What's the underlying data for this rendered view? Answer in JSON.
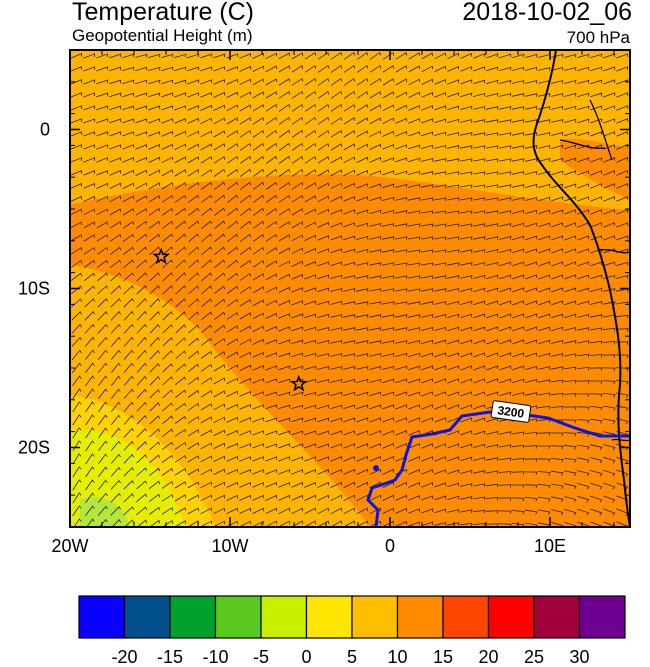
{
  "header": {
    "title": "Temperature (C)",
    "subtitle": "Geopotential Height (m)",
    "valid_time": "2018-10-02_06",
    "level": "700 hPa"
  },
  "map": {
    "lon_range": [
      -20,
      15
    ],
    "lat_range": [
      -25,
      5
    ],
    "x_ticks": [
      {
        "lon": -20,
        "label": "20W"
      },
      {
        "lon": -10,
        "label": "10W"
      },
      {
        "lon": 0,
        "label": "0"
      },
      {
        "lon": 10,
        "label": "10E"
      }
    ],
    "y_ticks": [
      {
        "lat": 0,
        "label": "0"
      },
      {
        "lat": -10,
        "label": "10S"
      },
      {
        "lat": -20,
        "label": "20S"
      }
    ],
    "contour_label": "3200",
    "contour_color": "#0a14e6",
    "stations": [
      {
        "name": "station-star-1",
        "lon": -14.3,
        "lat": -8.0
      },
      {
        "name": "station-star-2",
        "lon": -5.7,
        "lat": -16.0
      }
    ]
  },
  "colorbar": {
    "colors": [
      "#0a00ff",
      "#00508c",
      "#00a02d",
      "#5ac81e",
      "#c8ee00",
      "#ffe600",
      "#ffbe00",
      "#ff8c00",
      "#ff4600",
      "#ff0000",
      "#a0003c",
      "#6e0091"
    ],
    "labels": [
      "-20",
      "-15",
      "-10",
      "-5",
      "0",
      "5",
      "10",
      "15",
      "20",
      "25",
      "30"
    ]
  },
  "palette": {
    "field_base": "#ffb400",
    "field_warm": "#ff8c00",
    "field_cool": "#ffd200",
    "field_cold": "#e6ee00",
    "field_coldest": "#b4e63c",
    "coast": "#000000"
  }
}
